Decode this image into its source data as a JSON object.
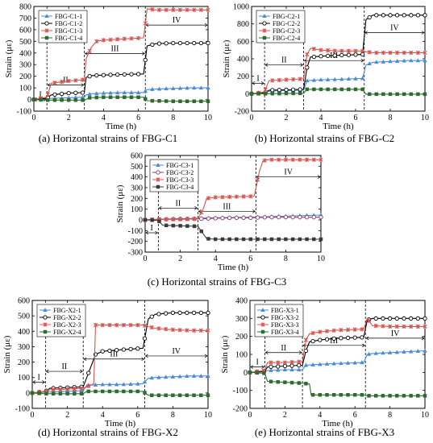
{
  "chart_data": [
    {
      "type": "line",
      "xlabel": "Time (h)",
      "ylabel": "Strain (με)",
      "xlim": [
        0,
        10
      ],
      "ylim": [
        -100,
        800
      ],
      "yticks": [
        -100,
        0,
        100,
        200,
        300,
        400,
        500,
        600,
        700,
        800
      ],
      "xticks": [
        0,
        2,
        4,
        6,
        8,
        10
      ],
      "caption": "(a) Horizontal strains of FBG-C1",
      "legend_position": "top-left",
      "stage_boundaries": [
        0.75,
        2.9,
        6.4
      ],
      "stages": [
        {
          "label": "I",
          "x_from": 0,
          "x_to": 0.75,
          "y": 0
        },
        {
          "label": "II",
          "x_from": 0.75,
          "x_to": 2.9,
          "y": 125
        },
        {
          "label": "III",
          "x_from": 2.9,
          "x_to": 6.4,
          "y": 395
        },
        {
          "label": "IV",
          "x_from": 6.4,
          "x_to": 10,
          "y": 640
        }
      ],
      "series": [
        {
          "name": "FBG-C1-1",
          "color": "#4a8bd6",
          "marker": "triangle",
          "x": [
            0,
            0.75,
            1.0,
            2.0,
            2.9,
            3.0,
            3.3,
            4.0,
            5.0,
            6.3,
            6.5,
            7.0,
            8.0,
            9.0,
            10
          ],
          "y": [
            0,
            5,
            10,
            15,
            20,
            40,
            50,
            55,
            60,
            60,
            85,
            90,
            95,
            100,
            100
          ]
        },
        {
          "name": "FBG-C1-2",
          "color": "#000000",
          "marker": "circle",
          "x": [
            0,
            0.75,
            1.0,
            2.0,
            2.9,
            3.0,
            3.3,
            4.0,
            5.0,
            6.3,
            6.5,
            7.0,
            8.0,
            9.0,
            10
          ],
          "y": [
            0,
            10,
            40,
            55,
            60,
            190,
            205,
            210,
            215,
            220,
            460,
            480,
            485,
            485,
            485
          ]
        },
        {
          "name": "FBG-C1-3",
          "color": "#d9534f",
          "marker": "star",
          "x": [
            0,
            0.75,
            1.0,
            2.0,
            2.9,
            3.0,
            3.3,
            3.6,
            4.0,
            5.0,
            6.3,
            6.5,
            7.0,
            8.0,
            9.0,
            10
          ],
          "y": [
            0,
            20,
            140,
            160,
            170,
            350,
            450,
            500,
            510,
            520,
            530,
            780,
            770,
            770,
            770,
            770
          ]
        },
        {
          "name": "FBG-C1-4",
          "color": "#2e6b2e",
          "marker": "square",
          "x": [
            0,
            0.75,
            2.9,
            3.2,
            4.0,
            5.0,
            6.3,
            6.5,
            8.0,
            10
          ],
          "y": [
            0,
            -5,
            -5,
            15,
            20,
            20,
            20,
            -10,
            -15,
            -15
          ]
        }
      ]
    },
    {
      "type": "line",
      "xlabel": "Time (h)",
      "ylabel": "Strain (με)",
      "xlim": [
        0,
        10
      ],
      "ylim": [
        -200,
        1000
      ],
      "yticks": [
        -200,
        0,
        200,
        400,
        600,
        800,
        1000
      ],
      "xticks": [
        0,
        2,
        4,
        6,
        8,
        10
      ],
      "caption": "(b) Horizontal strains of FBG-C2",
      "legend_position": "top-left",
      "stage_boundaries": [
        0.75,
        3.0,
        6.5
      ],
      "stages": [
        {
          "label": "I",
          "x_from": 0,
          "x_to": 0.75,
          "y": 120
        },
        {
          "label": "II",
          "x_from": 0.75,
          "x_to": 3.0,
          "y": 330
        },
        {
          "label": "III",
          "x_from": 3.0,
          "x_to": 6.5,
          "y": 380
        },
        {
          "label": "IV",
          "x_from": 6.5,
          "x_to": 10,
          "y": 700
        }
      ],
      "series": [
        {
          "name": "FBG-C2-1",
          "color": "#4a8bd6",
          "marker": "triangle",
          "x": [
            0,
            0.75,
            1.0,
            2.0,
            3.0,
            3.2,
            4.0,
            5.0,
            6.4,
            6.6,
            7.0,
            8.0,
            9.0,
            10
          ],
          "y": [
            0,
            10,
            30,
            35,
            40,
            150,
            160,
            165,
            175,
            330,
            360,
            370,
            380,
            380
          ]
        },
        {
          "name": "FBG-C2-2",
          "color": "#000000",
          "marker": "circle",
          "x": [
            0,
            0.75,
            1.0,
            2.0,
            3.0,
            3.2,
            3.4,
            4.0,
            5.0,
            6.4,
            6.6,
            7.0,
            8.0,
            9.0,
            10
          ],
          "y": [
            0,
            10,
            40,
            45,
            50,
            300,
            420,
            430,
            440,
            450,
            850,
            900,
            900,
            900,
            900
          ]
        },
        {
          "name": "FBG-C2-3",
          "color": "#d9534f",
          "marker": "star",
          "x": [
            0,
            0.75,
            1.0,
            2.0,
            3.0,
            3.2,
            3.4,
            4.0,
            5.0,
            6.4,
            6.6,
            7.0,
            8.0,
            9.0,
            10
          ],
          "y": [
            0,
            20,
            150,
            160,
            170,
            450,
            520,
            500,
            490,
            490,
            480,
            470,
            470,
            470,
            470
          ]
        },
        {
          "name": "FBG-C2-4",
          "color": "#2e6b2e",
          "marker": "square",
          "x": [
            0,
            0.75,
            3.0,
            3.2,
            5.0,
            6.4,
            6.6,
            8.0,
            10
          ],
          "y": [
            0,
            0,
            5,
            50,
            50,
            50,
            -5,
            -5,
            -5
          ]
        }
      ]
    },
    {
      "type": "line",
      "xlabel": "Time (h)",
      "ylabel": "Strain (με)",
      "xlim": [
        0,
        10
      ],
      "ylim": [
        -300,
        600
      ],
      "yticks": [
        -300,
        -200,
        -100,
        0,
        100,
        200,
        300,
        400,
        500,
        600
      ],
      "xticks": [
        0,
        2,
        4,
        6,
        8,
        10
      ],
      "caption": "(c) Horizontal strains of FBG-C3",
      "legend_position": "top-left",
      "stage_boundaries": [
        0.75,
        3.0,
        6.3
      ],
      "stages": [
        {
          "label": "I",
          "x_from": 0,
          "x_to": 0.75,
          "y": -120
        },
        {
          "label": "II",
          "x_from": 0.75,
          "x_to": 3.0,
          "y": 110
        },
        {
          "label": "III",
          "x_from": 3.0,
          "x_to": 6.3,
          "y": 80
        },
        {
          "label": "IV",
          "x_from": 6.3,
          "x_to": 10,
          "y": 400
        }
      ],
      "series": [
        {
          "name": "FBG-C3-1",
          "color": "#4a8bd6",
          "marker": "triangle",
          "x": [
            0,
            0.75,
            2.0,
            3.0,
            4.0,
            5.0,
            6.0,
            7.0,
            8.0,
            9.0,
            10
          ],
          "y": [
            0,
            5,
            10,
            15,
            20,
            22,
            25,
            30,
            35,
            40,
            45
          ]
        },
        {
          "name": "FBG-C3-2",
          "color": "#8a3a6a",
          "marker": "circle",
          "x": [
            0,
            0.75,
            2.0,
            3.0,
            4.0,
            5.0,
            6.0,
            7.0,
            8.0,
            10
          ],
          "y": [
            0,
            5,
            10,
            10,
            15,
            20,
            20,
            25,
            25,
            25
          ]
        },
        {
          "name": "FBG-C3-3",
          "color": "#d9534f",
          "marker": "star",
          "x": [
            0,
            0.75,
            2.0,
            3.0,
            3.3,
            3.5,
            4.0,
            5.0,
            6.2,
            6.5,
            6.7,
            7.0,
            8.0,
            9.0,
            10
          ],
          "y": [
            0,
            5,
            5,
            10,
            100,
            200,
            210,
            215,
            220,
            450,
            550,
            560,
            560,
            560,
            560
          ]
        },
        {
          "name": "FBG-C3-4",
          "color": "#3a3a3a",
          "marker": "square",
          "x": [
            0,
            0.75,
            1.0,
            2.0,
            3.0,
            3.5,
            4.0,
            5.0,
            6.0,
            7.0,
            8.0,
            10
          ],
          "y": [
            0,
            -5,
            -50,
            -55,
            -60,
            -175,
            -180,
            -180,
            -180,
            -180,
            -180,
            -180
          ]
        }
      ]
    },
    {
      "type": "line",
      "xlabel": "Time (h)",
      "ylabel": "Strain (με)",
      "xlim": [
        0,
        10
      ],
      "ylim": [
        -100,
        600
      ],
      "yticks": [
        -100,
        0,
        100,
        200,
        300,
        400,
        500,
        600
      ],
      "xticks": [
        0,
        2,
        4,
        6,
        8,
        10
      ],
      "caption": "(d) Horizontal strains of FBG-X2",
      "legend_position": "top-left",
      "stage_boundaries": [
        0.75,
        2.9,
        6.4
      ],
      "stages": [
        {
          "label": "I",
          "x_from": 0,
          "x_to": 0.75,
          "y": 70
        },
        {
          "label": "II",
          "x_from": 0.75,
          "x_to": 2.9,
          "y": 140
        },
        {
          "label": "III",
          "x_from": 2.9,
          "x_to": 6.4,
          "y": 220
        },
        {
          "label": "IV",
          "x_from": 6.4,
          "x_to": 10,
          "y": 240
        }
      ],
      "series": [
        {
          "name": "FBG-X2-1",
          "color": "#4a8bd6",
          "marker": "triangle",
          "x": [
            0,
            0.75,
            2.0,
            2.9,
            3.1,
            4.0,
            5.0,
            6.3,
            6.6,
            7.0,
            8.0,
            9.0,
            10
          ],
          "y": [
            0,
            5,
            10,
            15,
            50,
            55,
            55,
            60,
            95,
            100,
            105,
            110,
            110
          ]
        },
        {
          "name": "FBG-X2-2",
          "color": "#000000",
          "marker": "circle",
          "x": [
            0,
            0.75,
            1.0,
            2.0,
            2.9,
            3.1,
            3.6,
            4.0,
            5.0,
            6.3,
            6.6,
            7.0,
            8.0,
            9.0,
            10
          ],
          "y": [
            0,
            10,
            30,
            35,
            40,
            100,
            250,
            270,
            280,
            290,
            480,
            510,
            520,
            520,
            520
          ]
        },
        {
          "name": "FBG-X2-3",
          "color": "#d9534f",
          "marker": "star",
          "x": [
            0,
            0.75,
            1.0,
            2.0,
            2.9,
            3.1,
            3.5,
            3.6,
            4.0,
            5.0,
            6.3,
            6.6,
            7.0,
            8.0,
            9.0,
            10
          ],
          "y": [
            0,
            10,
            20,
            25,
            30,
            40,
            60,
            440,
            440,
            440,
            440,
            430,
            420,
            410,
            405,
            405
          ]
        },
        {
          "name": "FBG-X2-4",
          "color": "#2e6b2e",
          "marker": "square",
          "x": [
            0,
            0.75,
            2.9,
            3.1,
            5.0,
            6.3,
            6.6,
            8.0,
            10
          ],
          "y": [
            0,
            -5,
            -5,
            10,
            10,
            10,
            -15,
            -15,
            -15
          ]
        }
      ]
    },
    {
      "type": "line",
      "xlabel": "Time (h)",
      "ylabel": "Strain (με)",
      "xlim": [
        0,
        10
      ],
      "ylim": [
        -200,
        400
      ],
      "yticks": [
        -200,
        -100,
        0,
        100,
        200,
        300,
        400
      ],
      "xticks": [
        0,
        2,
        4,
        6,
        8,
        10
      ],
      "caption": "(e) Horizontal strains of FBG-X3",
      "legend_position": "top-left",
      "stage_boundaries": [
        0.85,
        3.0,
        6.6
      ],
      "stages": [
        {
          "label": "I",
          "x_from": 0,
          "x_to": 0.85,
          "y": 30
        },
        {
          "label": "II",
          "x_from": 0.85,
          "x_to": 3.0,
          "y": 110
        },
        {
          "label": "III",
          "x_from": 3.0,
          "x_to": 6.6,
          "y": 150
        },
        {
          "label": "IV",
          "x_from": 6.6,
          "x_to": 10,
          "y": 190
        }
      ],
      "series": [
        {
          "name": "FBG-X3-1",
          "color": "#4a8bd6",
          "marker": "triangle",
          "x": [
            0,
            0.85,
            1.0,
            2.0,
            3.0,
            3.2,
            4.0,
            5.0,
            6.5,
            6.7,
            7.0,
            8.0,
            9.0,
            10
          ],
          "y": [
            0,
            5,
            10,
            15,
            15,
            40,
            45,
            50,
            55,
            100,
            105,
            110,
            115,
            120
          ]
        },
        {
          "name": "FBG-X3-2",
          "color": "#000000",
          "marker": "circle",
          "x": [
            0,
            0.85,
            1.0,
            2.0,
            3.0,
            3.2,
            3.4,
            4.0,
            5.0,
            6.5,
            6.7,
            7.0,
            8.0,
            9.0,
            10
          ],
          "y": [
            0,
            5,
            30,
            35,
            40,
            120,
            170,
            180,
            190,
            195,
            290,
            300,
            300,
            300,
            300
          ]
        },
        {
          "name": "FBG-X3-3",
          "color": "#d9534f",
          "marker": "star",
          "x": [
            0,
            0.85,
            1.0,
            2.0,
            3.0,
            3.2,
            3.4,
            4.0,
            5.0,
            6.5,
            6.7,
            7.0,
            8.0,
            9.0,
            10
          ],
          "y": [
            0,
            10,
            55,
            55,
            60,
            180,
            215,
            225,
            235,
            240,
            300,
            260,
            255,
            255,
            255
          ]
        },
        {
          "name": "FBG-X3-4",
          "color": "#2e6b2e",
          "marker": "square",
          "x": [
            0,
            0.85,
            1.0,
            2.0,
            3.0,
            3.4,
            3.5,
            4.0,
            5.0,
            6.5,
            6.7,
            8.0,
            10
          ],
          "y": [
            0,
            -5,
            -50,
            -55,
            -60,
            -65,
            -125,
            -125,
            -125,
            -125,
            -130,
            -130,
            -130
          ]
        }
      ]
    }
  ]
}
